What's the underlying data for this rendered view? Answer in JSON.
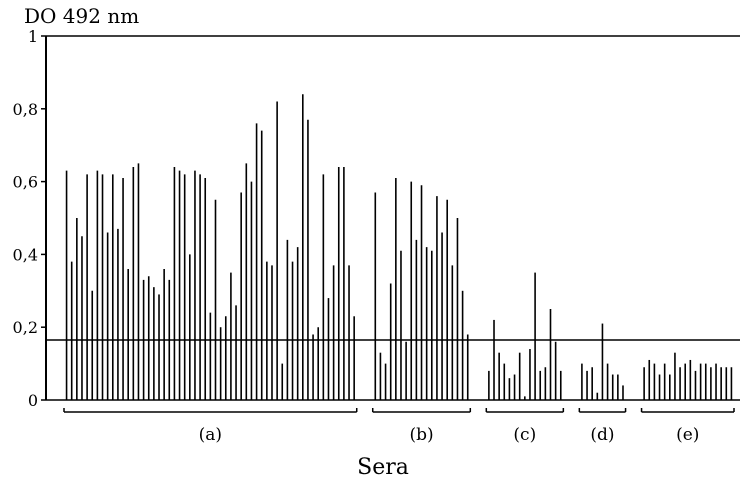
{
  "chart_data": {
    "type": "bar",
    "title": "DO 492 nm",
    "xlabel": "Sera",
    "ylabel": "",
    "ylim": [
      0,
      1
    ],
    "yticks": [
      {
        "value": 0,
        "label": "0"
      },
      {
        "value": 0.2,
        "label": "0,2"
      },
      {
        "value": 0.4,
        "label": "0,4"
      },
      {
        "value": 0.6,
        "label": "0,6"
      },
      {
        "value": 0.8,
        "label": "0,8"
      },
      {
        "value": 1,
        "label": "1"
      }
    ],
    "threshold": 0.165,
    "colors": {
      "bars": "#000000",
      "axes": "#000000",
      "background": "#ffffff"
    },
    "grid": false,
    "groups": [
      {
        "label": "(a)",
        "values": [
          0.63,
          0.38,
          0.5,
          0.45,
          0.62,
          0.3,
          0.63,
          0.62,
          0.46,
          0.62,
          0.47,
          0.61,
          0.36,
          0.64,
          0.65,
          0.33,
          0.34,
          0.31,
          0.29,
          0.36,
          0.33,
          0.64,
          0.63,
          0.62,
          0.4,
          0.63,
          0.62,
          0.61,
          0.24,
          0.55,
          0.2,
          0.23,
          0.35,
          0.26,
          0.57,
          0.65,
          0.6,
          0.76,
          0.74,
          0.38,
          0.37,
          0.82,
          0.1,
          0.44,
          0.38,
          0.42,
          0.84,
          0.77,
          0.18,
          0.2,
          0.62,
          0.28,
          0.37,
          0.64,
          0.64,
          0.37,
          0.23
        ]
      },
      {
        "label": "(b)",
        "values": [
          0.57,
          0.13,
          0.1,
          0.32,
          0.61,
          0.41,
          0.16,
          0.6,
          0.44,
          0.59,
          0.42,
          0.41,
          0.56,
          0.46,
          0.55,
          0.37,
          0.5,
          0.3,
          0.18
        ]
      },
      {
        "label": "(c)",
        "values": [
          0.08,
          0.22,
          0.13,
          0.1,
          0.06,
          0.07,
          0.13,
          0.01,
          0.14,
          0.35,
          0.08,
          0.09,
          0.25,
          0.16,
          0.08
        ]
      },
      {
        "label": "(d)",
        "values": [
          0.1,
          0.08,
          0.09,
          0.02,
          0.21,
          0.1,
          0.07,
          0.07,
          0.04
        ]
      },
      {
        "label": "(e)",
        "values": [
          0.09,
          0.11,
          0.1,
          0.07,
          0.1,
          0.07,
          0.13,
          0.09,
          0.1,
          0.11,
          0.08,
          0.1,
          0.1,
          0.09,
          0.1,
          0.09,
          0.09,
          0.09
        ]
      }
    ]
  }
}
